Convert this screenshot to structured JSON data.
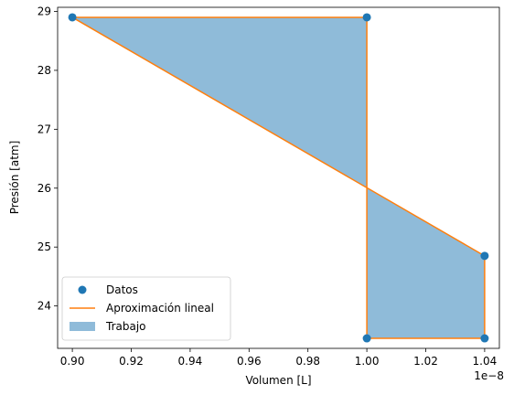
{
  "chart_data": {
    "type": "line",
    "xlabel": "Volumen [L]",
    "ylabel": "Presión [atm]",
    "x_offset_label": "1e−8",
    "xlim": [
      0.895,
      1.045
    ],
    "ylim": [
      23.28,
      29.07
    ],
    "x_ticks": [
      0.9,
      0.92,
      0.94,
      0.96,
      0.98,
      1.0,
      1.02,
      1.04
    ],
    "x_tick_labels": [
      "0.90",
      "0.92",
      "0.94",
      "0.96",
      "0.98",
      "1.00",
      "1.02",
      "1.04"
    ],
    "y_ticks": [
      24,
      25,
      26,
      27,
      28,
      29
    ],
    "y_tick_labels": [
      "24",
      "25",
      "26",
      "27",
      "28",
      "29"
    ],
    "grid": false,
    "legend_position": "lower-left",
    "series": [
      {
        "name": "Datos",
        "kind": "scatter",
        "color": "#1f77b4",
        "points": [
          {
            "x": 0.9,
            "y": 28.9
          },
          {
            "x": 1.0,
            "y": 28.9
          },
          {
            "x": 1.0,
            "y": 23.45
          },
          {
            "x": 1.04,
            "y": 23.45
          },
          {
            "x": 1.04,
            "y": 24.85
          }
        ]
      },
      {
        "name": "Aproximación lineal",
        "kind": "line",
        "color": "#ff7f0e",
        "points": [
          {
            "x": 0.9,
            "y": 28.9
          },
          {
            "x": 1.0,
            "y": 28.9
          },
          {
            "x": 1.0,
            "y": 23.45
          },
          {
            "x": 1.04,
            "y": 23.45
          },
          {
            "x": 1.04,
            "y": 24.85
          },
          {
            "x": 0.9,
            "y": 28.9
          }
        ]
      },
      {
        "name": "Trabajo",
        "kind": "area",
        "color": "#1f77b4",
        "opacity": 0.5,
        "points": [
          {
            "x": 0.9,
            "y": 28.9
          },
          {
            "x": 1.0,
            "y": 28.9
          },
          {
            "x": 1.0,
            "y": 23.45
          },
          {
            "x": 1.04,
            "y": 23.45
          },
          {
            "x": 1.04,
            "y": 24.85
          }
        ]
      }
    ],
    "legend": [
      {
        "label": "Datos",
        "marker": "dot",
        "color": "#1f77b4"
      },
      {
        "label": "Aproximación lineal",
        "marker": "line",
        "color": "#ff7f0e"
      },
      {
        "label": "Trabajo",
        "marker": "patch",
        "color": "#1f77b4"
      }
    ]
  }
}
